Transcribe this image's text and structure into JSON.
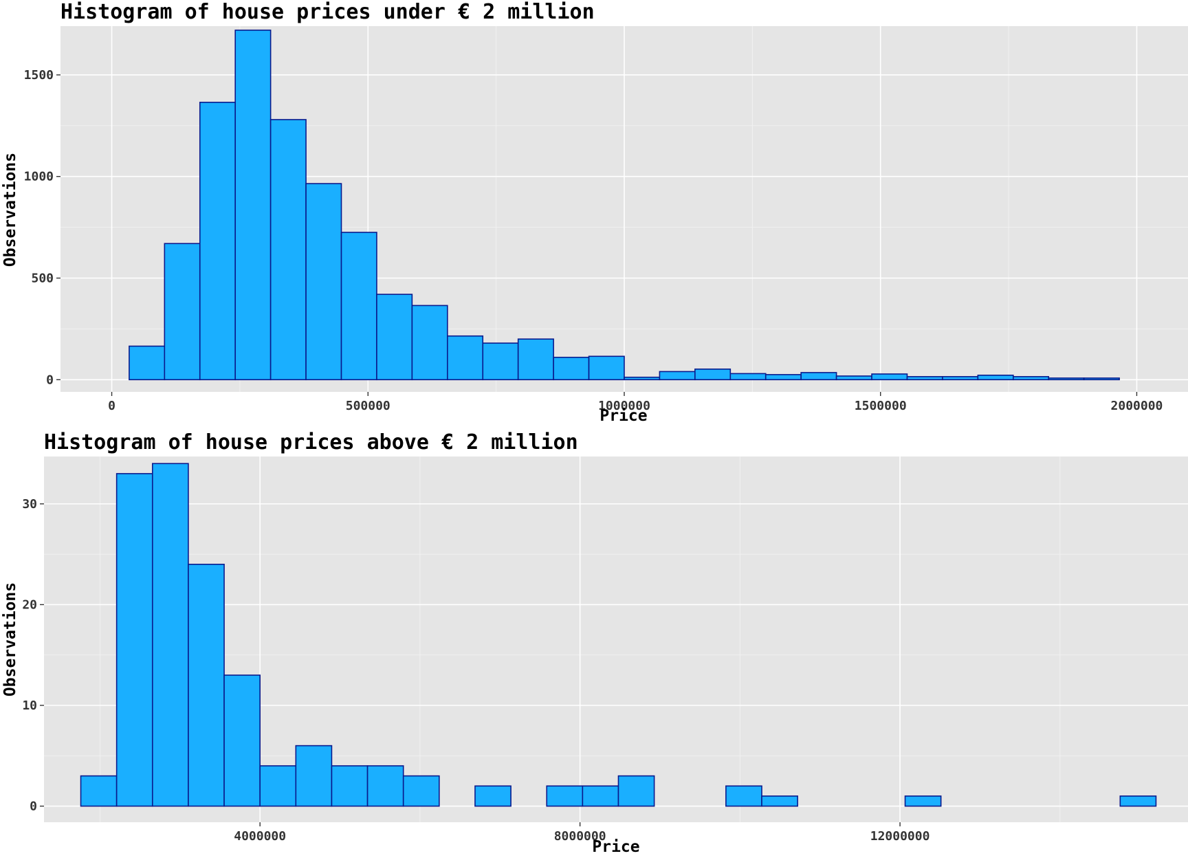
{
  "colors": {
    "bar_fill": "#1aafff",
    "bar_stroke": "#0a1a8c",
    "panel": "#e5e5e5"
  },
  "chart_data": [
    {
      "type": "bar",
      "title": "Histogram of house prices under € 2 million",
      "xlabel": "Price",
      "ylabel": "Observations",
      "grid": true,
      "legend": "none",
      "xlim": [
        -100000,
        2100000
      ],
      "ylim": [
        -60,
        1740
      ],
      "x_major_ticks": [
        0,
        500000,
        1000000,
        1500000,
        2000000
      ],
      "x_tick_labels": [
        "0",
        "500000",
        "1000000",
        "1500000",
        "2000000"
      ],
      "y_major_ticks": [
        0,
        500,
        1000,
        1500
      ],
      "y_tick_labels": [
        "0",
        "500",
        "1000",
        "1500"
      ],
      "bin_start": 34000,
      "bin_width": 69000,
      "values": [
        165,
        670,
        1365,
        1720,
        1280,
        965,
        725,
        420,
        365,
        215,
        180,
        200,
        110,
        115,
        12,
        40,
        52,
        30,
        25,
        35,
        18,
        28,
        15,
        15,
        22,
        15,
        8,
        8
      ]
    },
    {
      "type": "bar",
      "title": "Histogram of house prices above € 2 million",
      "xlabel": "Price",
      "ylabel": "Observations",
      "grid": true,
      "legend": "none",
      "xlim": [
        1300000,
        15600000
      ],
      "ylim": [
        -1.6,
        34.7
      ],
      "x_major_ticks": [
        4000000,
        8000000,
        12000000
      ],
      "x_tick_labels": [
        "4000000",
        "8000000",
        "12000000"
      ],
      "y_major_ticks": [
        0,
        10,
        20,
        30
      ],
      "y_tick_labels": [
        "0",
        "10",
        "20",
        "30"
      ],
      "bin_start": 1760000,
      "bin_width": 448000,
      "values": [
        3,
        33,
        34,
        24,
        13,
        4,
        6,
        4,
        4,
        3,
        0,
        2,
        0,
        2,
        2,
        3,
        0,
        0,
        2,
        1,
        0,
        0,
        0,
        1,
        0,
        0,
        0,
        0,
        0,
        1
      ]
    }
  ]
}
